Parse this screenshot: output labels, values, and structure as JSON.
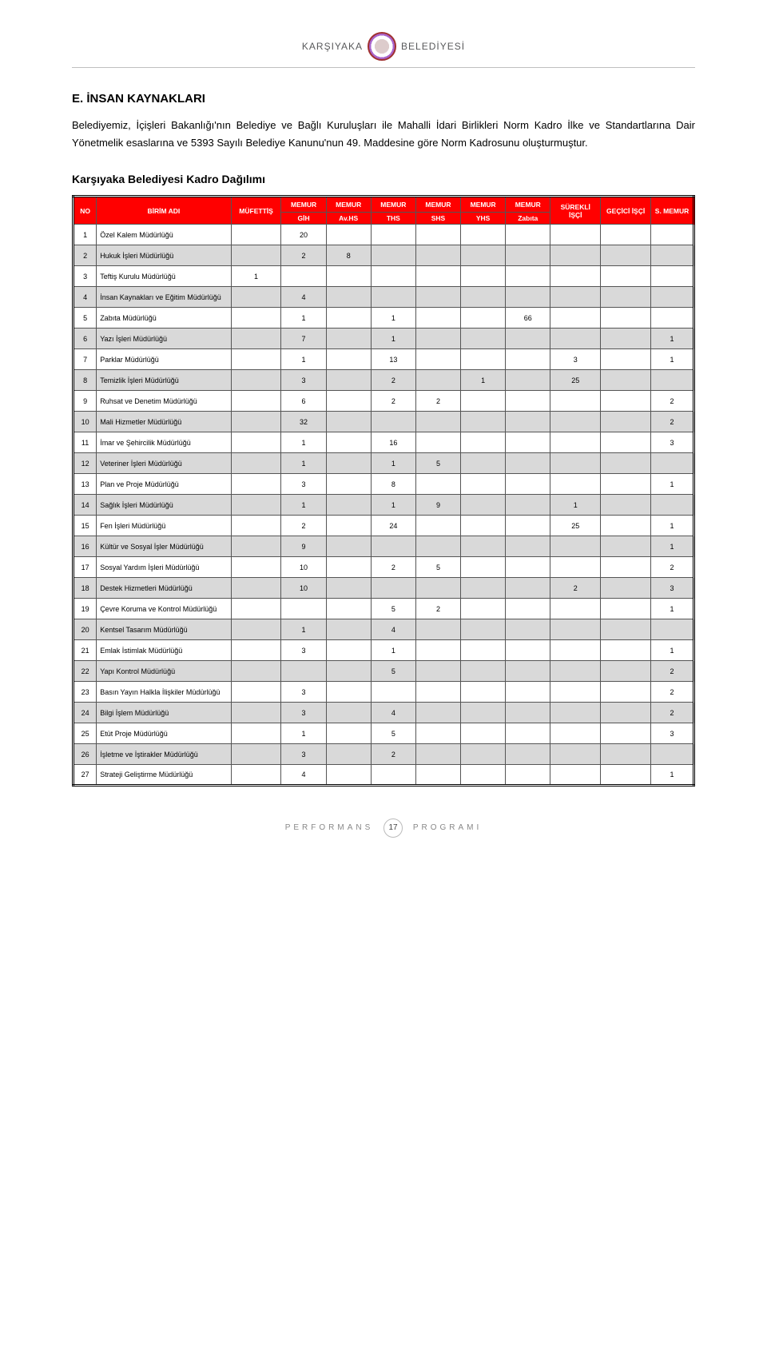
{
  "brand": {
    "name_left": "KARŞIYAKA",
    "name_right": "BELEDİYESİ"
  },
  "section": {
    "title": "E. İNSAN KAYNAKLARI",
    "intro": "Belediyemiz, İçişleri Bakanlığı'nın Belediye ve Bağlı Kuruluşları ile Mahalli İdari Birlikleri Norm Kadro İlke ve Standartlarına Dair Yönetmelik esaslarına ve 5393 Sayılı Belediye Kanunu'nun 49. Maddesine göre Norm Kadrosunu oluşturmuştur.",
    "table_title": "Karşıyaka Belediyesi Kadro Dağılımı"
  },
  "table": {
    "header_bg": "#ff0000",
    "header_fg": "#ffffff",
    "zebra_bg": "#d9d9d9",
    "border": "#000000",
    "columns": {
      "no": "NO",
      "unit": "BİRİM ADI",
      "mufettis": "MÜFETTİŞ",
      "memur": "MEMUR",
      "surekli": "SÜREKLİ İŞÇİ",
      "gecici": "GEÇİCİ İŞÇİ",
      "smemur": "S. MEMUR",
      "sub": [
        "GİH",
        "Av.HS",
        "THS",
        "SHS",
        "YHS",
        "Zabıta"
      ]
    },
    "rows": [
      {
        "no": "1",
        "unit": "Özel Kalem Müdürlüğü",
        "muf": "",
        "gih": "20",
        "avhs": "",
        "ths": "",
        "shs": "",
        "yhs": "",
        "zab": "",
        "sur": "",
        "gec": "",
        "sm": ""
      },
      {
        "no": "2",
        "unit": "Hukuk İşleri Müdürlüğü",
        "muf": "",
        "gih": "2",
        "avhs": "8",
        "ths": "",
        "shs": "",
        "yhs": "",
        "zab": "",
        "sur": "",
        "gec": "",
        "sm": ""
      },
      {
        "no": "3",
        "unit": "Teftiş Kurulu Müdürlüğü",
        "muf": "1",
        "gih": "",
        "avhs": "",
        "ths": "",
        "shs": "",
        "yhs": "",
        "zab": "",
        "sur": "",
        "gec": "",
        "sm": ""
      },
      {
        "no": "4",
        "unit": "İnsan Kaynakları ve Eğitim Müdürlüğü",
        "muf": "",
        "gih": "4",
        "avhs": "",
        "ths": "",
        "shs": "",
        "yhs": "",
        "zab": "",
        "sur": "",
        "gec": "",
        "sm": ""
      },
      {
        "no": "5",
        "unit": "Zabıta Müdürlüğü",
        "muf": "",
        "gih": "1",
        "avhs": "",
        "ths": "1",
        "shs": "",
        "yhs": "",
        "zab": "66",
        "sur": "",
        "gec": "",
        "sm": ""
      },
      {
        "no": "6",
        "unit": "Yazı İşleri Müdürlüğü",
        "muf": "",
        "gih": "7",
        "avhs": "",
        "ths": "1",
        "shs": "",
        "yhs": "",
        "zab": "",
        "sur": "",
        "gec": "",
        "sm": "1"
      },
      {
        "no": "7",
        "unit": "Parklar Müdürlüğü",
        "muf": "",
        "gih": "1",
        "avhs": "",
        "ths": "13",
        "shs": "",
        "yhs": "",
        "zab": "",
        "sur": "3",
        "gec": "",
        "sm": "1"
      },
      {
        "no": "8",
        "unit": "Temizlik İşleri Müdürlüğü",
        "muf": "",
        "gih": "3",
        "avhs": "",
        "ths": "2",
        "shs": "",
        "yhs": "1",
        "zab": "",
        "sur": "25",
        "gec": "",
        "sm": ""
      },
      {
        "no": "9",
        "unit": "Ruhsat ve Denetim Müdürlüğü",
        "muf": "",
        "gih": "6",
        "avhs": "",
        "ths": "2",
        "shs": "2",
        "yhs": "",
        "zab": "",
        "sur": "",
        "gec": "",
        "sm": "2"
      },
      {
        "no": "10",
        "unit": "Mali Hizmetler Müdürlüğü",
        "muf": "",
        "gih": "32",
        "avhs": "",
        "ths": "",
        "shs": "",
        "yhs": "",
        "zab": "",
        "sur": "",
        "gec": "",
        "sm": "2"
      },
      {
        "no": "11",
        "unit": "İmar ve Şehircilik Müdürlüğü",
        "muf": "",
        "gih": "1",
        "avhs": "",
        "ths": "16",
        "shs": "",
        "yhs": "",
        "zab": "",
        "sur": "",
        "gec": "",
        "sm": "3"
      },
      {
        "no": "12",
        "unit": "Veteriner İşleri Müdürlüğü",
        "muf": "",
        "gih": "1",
        "avhs": "",
        "ths": "1",
        "shs": "5",
        "yhs": "",
        "zab": "",
        "sur": "",
        "gec": "",
        "sm": ""
      },
      {
        "no": "13",
        "unit": "Plan ve Proje Müdürlüğü",
        "muf": "",
        "gih": "3",
        "avhs": "",
        "ths": "8",
        "shs": "",
        "yhs": "",
        "zab": "",
        "sur": "",
        "gec": "",
        "sm": "1"
      },
      {
        "no": "14",
        "unit": "Sağlık İşleri Müdürlüğü",
        "muf": "",
        "gih": "1",
        "avhs": "",
        "ths": "1",
        "shs": "9",
        "yhs": "",
        "zab": "",
        "sur": "1",
        "gec": "",
        "sm": ""
      },
      {
        "no": "15",
        "unit": "Fen İşleri Müdürlüğü",
        "muf": "",
        "gih": "2",
        "avhs": "",
        "ths": "24",
        "shs": "",
        "yhs": "",
        "zab": "",
        "sur": "25",
        "gec": "",
        "sm": "1"
      },
      {
        "no": "16",
        "unit": "Kültür ve Sosyal İşler Müdürlüğü",
        "muf": "",
        "gih": "9",
        "avhs": "",
        "ths": "",
        "shs": "",
        "yhs": "",
        "zab": "",
        "sur": "",
        "gec": "",
        "sm": "1"
      },
      {
        "no": "17",
        "unit": "Sosyal Yardım İşleri Müdürlüğü",
        "muf": "",
        "gih": "10",
        "avhs": "",
        "ths": "2",
        "shs": "5",
        "yhs": "",
        "zab": "",
        "sur": "",
        "gec": "",
        "sm": "2"
      },
      {
        "no": "18",
        "unit": "Destek Hizmetleri Müdürlüğü",
        "muf": "",
        "gih": "10",
        "avhs": "",
        "ths": "",
        "shs": "",
        "yhs": "",
        "zab": "",
        "sur": "2",
        "gec": "",
        "sm": "3"
      },
      {
        "no": "19",
        "unit": "Çevre Koruma ve Kontrol Müdürlüğü",
        "muf": "",
        "gih": "",
        "avhs": "",
        "ths": "5",
        "shs": "2",
        "yhs": "",
        "zab": "",
        "sur": "",
        "gec": "",
        "sm": "1"
      },
      {
        "no": "20",
        "unit": "Kentsel Tasarım Müdürlüğü",
        "muf": "",
        "gih": "1",
        "avhs": "",
        "ths": "4",
        "shs": "",
        "yhs": "",
        "zab": "",
        "sur": "",
        "gec": "",
        "sm": ""
      },
      {
        "no": "21",
        "unit": "Emlak İstimlak Müdürlüğü",
        "muf": "",
        "gih": "3",
        "avhs": "",
        "ths": "1",
        "shs": "",
        "yhs": "",
        "zab": "",
        "sur": "",
        "gec": "",
        "sm": "1"
      },
      {
        "no": "22",
        "unit": "Yapı Kontrol Müdürlüğü",
        "muf": "",
        "gih": "",
        "avhs": "",
        "ths": "5",
        "shs": "",
        "yhs": "",
        "zab": "",
        "sur": "",
        "gec": "",
        "sm": "2"
      },
      {
        "no": "23",
        "unit": "Basın Yayın Halkla İlişkiler Müdürlüğü",
        "muf": "",
        "gih": "3",
        "avhs": "",
        "ths": "",
        "shs": "",
        "yhs": "",
        "zab": "",
        "sur": "",
        "gec": "",
        "sm": "2"
      },
      {
        "no": "24",
        "unit": "Bilgi İşlem Müdürlüğü",
        "muf": "",
        "gih": "3",
        "avhs": "",
        "ths": "4",
        "shs": "",
        "yhs": "",
        "zab": "",
        "sur": "",
        "gec": "",
        "sm": "2"
      },
      {
        "no": "25",
        "unit": "Etüt Proje Müdürlüğü",
        "muf": "",
        "gih": "1",
        "avhs": "",
        "ths": "5",
        "shs": "",
        "yhs": "",
        "zab": "",
        "sur": "",
        "gec": "",
        "sm": "3"
      },
      {
        "no": "26",
        "unit": "İşletme ve İştirakler Müdürlüğü",
        "muf": "",
        "gih": "3",
        "avhs": "",
        "ths": "2",
        "shs": "",
        "yhs": "",
        "zab": "",
        "sur": "",
        "gec": "",
        "sm": ""
      },
      {
        "no": "27",
        "unit": "Strateji Geliştirme Müdürlüğü",
        "muf": "",
        "gih": "4",
        "avhs": "",
        "ths": "",
        "shs": "",
        "yhs": "",
        "zab": "",
        "sur": "",
        "gec": "",
        "sm": "1"
      }
    ]
  },
  "footer": {
    "left": "PERFORMANS",
    "page": "17",
    "right": "PROGRAMI"
  }
}
